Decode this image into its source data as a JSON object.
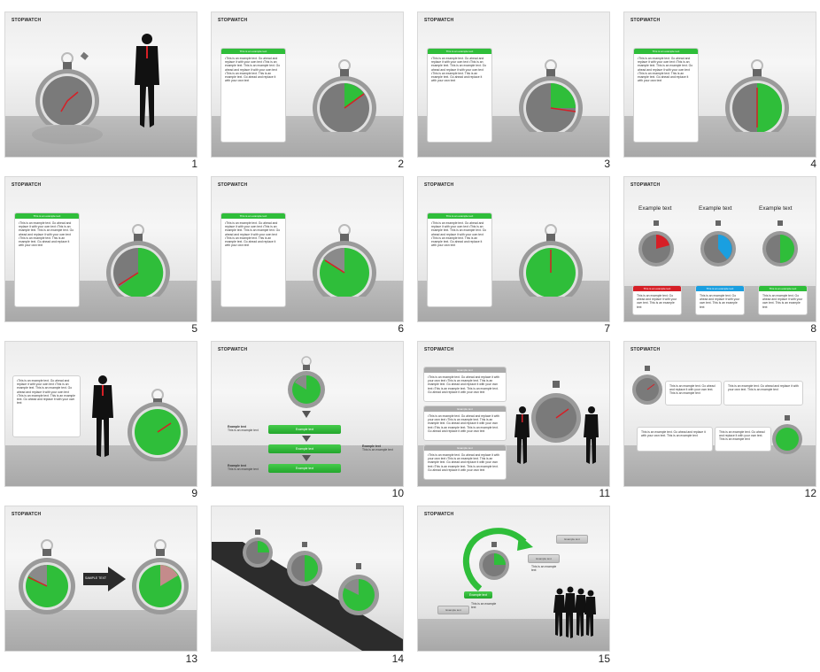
{
  "slide_title": "STOPWATCH",
  "example_text": "Example text",
  "panel_header": "This is an example text",
  "bullet_text": "•This is an example text. Go ahead and replace it with your own text •This is an example text. This is an example text. Go ahead and replace it with your own text •This is an example text. This is an example text. Go ahead and replace it with your own text",
  "short_text": "This is an example text. Go ahead and replace it with your own text. This is an example text",
  "small_text": "This is an example text",
  "sample_text": "SAMPLE TEXT",
  "slide_numbers": [
    "1",
    "2",
    "3",
    "4",
    "5",
    "6",
    "7",
    "8",
    "9",
    "10",
    "11",
    "12",
    "13",
    "14",
    "15"
  ],
  "colors": {
    "green": "#2fbe3a",
    "red": "#d61f26",
    "blue": "#1a9fe0",
    "gray": "#8c8c8c"
  }
}
